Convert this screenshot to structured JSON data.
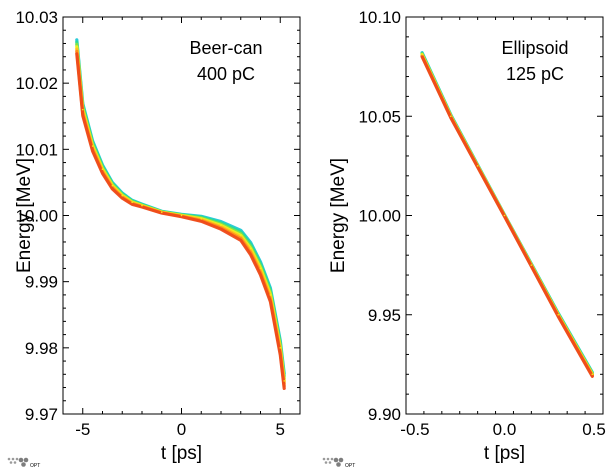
{
  "logo_text": "OPT",
  "colors": {
    "band": [
      "#1fc8d6",
      "#27d99a",
      "#7fe24a",
      "#f2ef1a",
      "#ffc21c",
      "#ff8a1a",
      "#ee4a1a"
    ],
    "frame": "#000000"
  },
  "chart_data": [
    {
      "type": "scatter",
      "title": "",
      "xlabel": "t [ps]",
      "ylabel": "Energy [MeV]",
      "xlim": [
        -6,
        6
      ],
      "ylim": [
        9.97,
        10.03
      ],
      "xticks": [
        -5,
        0,
        5
      ],
      "xtick_labels": [
        "-5",
        "0",
        "5"
      ],
      "yticks": [
        9.97,
        9.98,
        9.99,
        10.0,
        10.01,
        10.02,
        10.03
      ],
      "ytick_labels": [
        "9.97",
        "9.98",
        "9.99",
        "10.00",
        "10.01",
        "10.02",
        "10.03"
      ],
      "annotation": [
        "Beer-can",
        "400 pC"
      ],
      "grid": false,
      "series": [
        {
          "x": [
            -5.3,
            -5.0,
            -4.5,
            -4.0,
            -3.5,
            -3.0,
            -2.5,
            -2.0,
            -1.0,
            0.0,
            1.0,
            2.0,
            3.0,
            3.5,
            4.0,
            4.5,
            5.0,
            5.2
          ],
          "y": [
            10.0255,
            10.016,
            10.0105,
            10.007,
            10.0045,
            10.003,
            10.002,
            10.0015,
            10.0005,
            10.0,
            9.9995,
            9.9985,
            9.997,
            9.995,
            9.992,
            9.988,
            9.98,
            9.975
          ]
        }
      ]
    },
    {
      "type": "scatter",
      "title": "",
      "xlabel": "t [ps]",
      "ylabel": "Energy [MeV]",
      "xlim": [
        -0.55,
        0.55
      ],
      "ylim": [
        9.9,
        10.1
      ],
      "xticks": [
        -0.5,
        0.0,
        0.5
      ],
      "xtick_labels": [
        "-0.5",
        "0.0",
        "0.5"
      ],
      "yticks": [
        9.9,
        9.95,
        10.0,
        10.05,
        10.1
      ],
      "ytick_labels": [
        "9.90",
        "9.95",
        "10.00",
        "10.05",
        "10.10"
      ],
      "annotation": [
        "Ellipsoid",
        "125 pC"
      ],
      "grid": false,
      "series": [
        {
          "x": [
            -0.46,
            -0.3,
            -0.15,
            0.0,
            0.15,
            0.3,
            0.49
          ],
          "y": [
            10.081,
            10.05,
            10.025,
            10.0,
            9.975,
            9.95,
            9.92
          ]
        }
      ]
    }
  ]
}
